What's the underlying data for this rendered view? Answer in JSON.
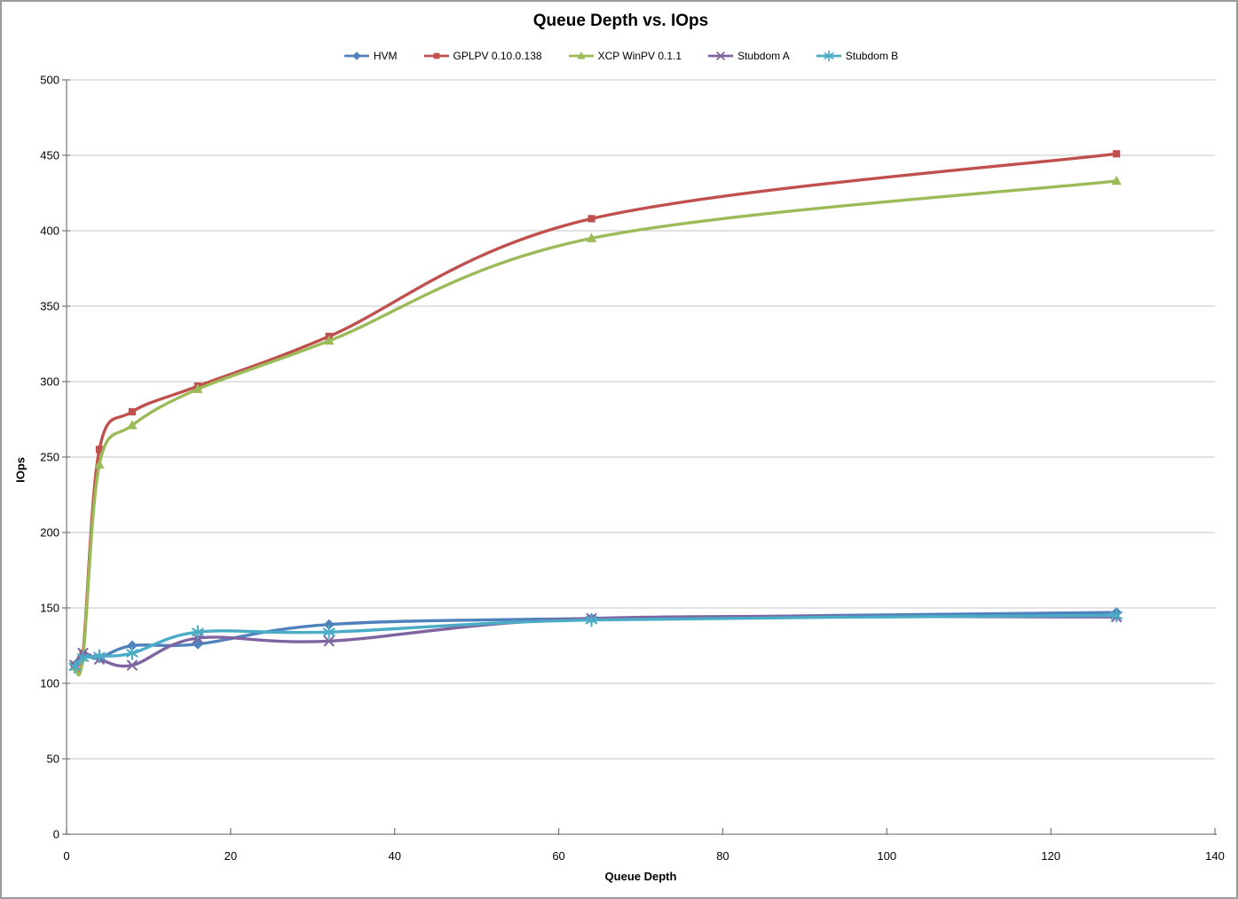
{
  "chart_data": {
    "type": "line",
    "title": "Queue Depth vs. IOps",
    "xlabel": "Queue Depth",
    "ylabel": "IOps",
    "x": [
      1,
      2,
      4,
      8,
      16,
      32,
      64,
      128
    ],
    "xlim": [
      0,
      140
    ],
    "ylim": [
      0,
      500
    ],
    "xticks": [
      0,
      20,
      40,
      60,
      80,
      100,
      120,
      140
    ],
    "yticks": [
      0,
      50,
      100,
      150,
      200,
      250,
      300,
      350,
      400,
      450,
      500
    ],
    "grid": "horizontal-only",
    "legend_position": "top-center",
    "smooth_lines": true,
    "series": [
      {
        "name": "HVM",
        "color": "#4F81BD",
        "marker": "diamond",
        "values": [
          112,
          118,
          117,
          125,
          126,
          139,
          143,
          147
        ]
      },
      {
        "name": "GPLPV 0.10.0.138",
        "color": "#C0504D",
        "marker": "square",
        "values": [
          112,
          120,
          255,
          280,
          297,
          330,
          408,
          451
        ]
      },
      {
        "name": "XCP WinPV 0.1.1",
        "color": "#9BBB59",
        "marker": "triangle",
        "values": [
          111,
          117,
          245,
          271,
          295,
          327,
          395,
          433
        ]
      },
      {
        "name": "Stubdom A",
        "color": "#8064A2",
        "marker": "x",
        "values": [
          112,
          120,
          116,
          112,
          130,
          128,
          143,
          144
        ]
      },
      {
        "name": "Stubdom B",
        "color": "#4BACC6",
        "marker": "asterisk",
        "values": [
          111,
          117,
          118,
          120,
          134,
          134,
          142,
          145
        ]
      }
    ],
    "style": {
      "gridline_color": "#C6C6C6",
      "axis_color": "#808080",
      "text_color": "#000000",
      "background": "#FFFFFF"
    }
  }
}
